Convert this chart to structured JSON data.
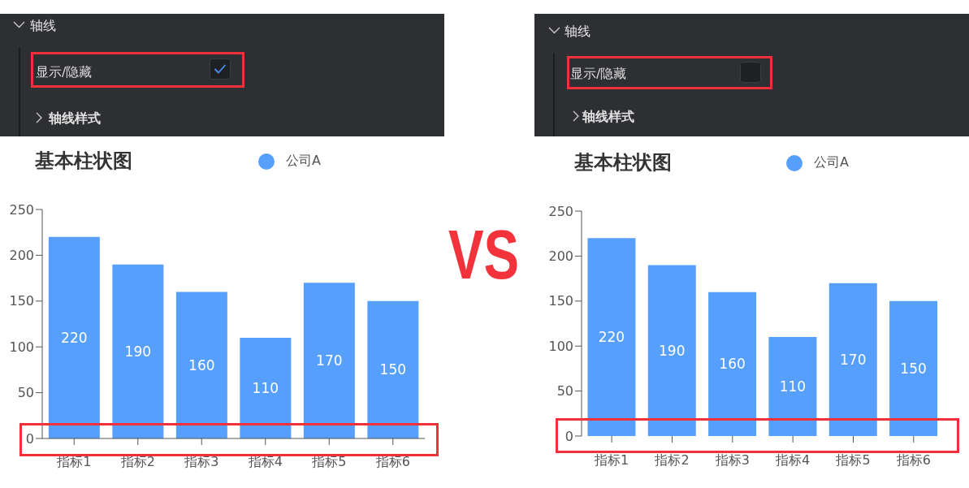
{
  "chart_data": [
    {
      "type": "other",
      "title": "轴线",
      "annotations": [
        "显示/隐藏",
        "轴线样式"
      ]
    },
    {
      "type": "bar",
      "title": "基本柱状图",
      "categories": [
        "指标1",
        "指标2",
        "指标3",
        "指标4",
        "指标5",
        "指标6"
      ],
      "series": [
        {
          "name": "公司A",
          "color": "#579ffc",
          "values": [
            220,
            190,
            160,
            110,
            170,
            150
          ]
        }
      ],
      "ylim": [
        0,
        250
      ],
      "yticks": [
        0,
        50,
        100,
        150,
        200,
        250
      ],
      "legend": "top",
      "data_labels": true
    },
    {
      "type": "other",
      "title": "VS"
    },
    {
      "type": "other",
      "title": "轴线",
      "annotations": [
        "显示/隐藏",
        "轴线样式"
      ]
    },
    {
      "type": "bar",
      "title": "基本柱状图",
      "categories": [
        "指标1",
        "指标2",
        "指标3",
        "指标4",
        "指标5",
        "指标6"
      ],
      "series": [
        {
          "name": "公司A",
          "color": "#579ffc",
          "values": [
            220,
            190,
            160,
            110,
            170,
            150
          ]
        }
      ],
      "ylim": [
        0,
        250
      ],
      "yticks": [
        0,
        50,
        100,
        150,
        200,
        250
      ],
      "legend": "top",
      "data_labels": true
    }
  ]
}
